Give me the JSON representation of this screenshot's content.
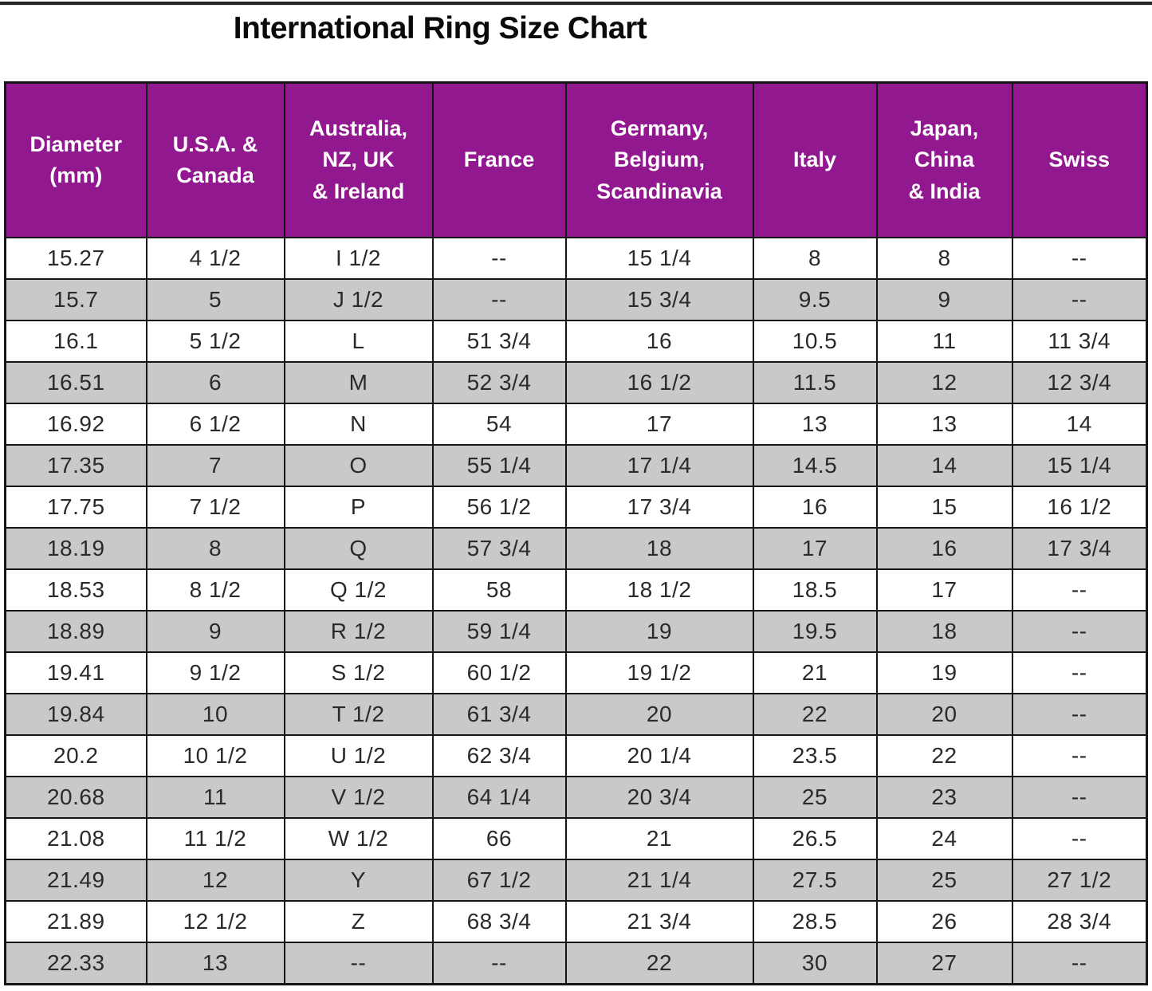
{
  "page": {
    "title": "International Ring Size Chart"
  },
  "colors": {
    "header_bg": "#91188F",
    "header_text": "#FFFFFF",
    "row_alt_bg": "#C9C9C9",
    "row_bg": "#FFFFFF",
    "border": "#161616",
    "cell_text": "#2A2A2A"
  },
  "table": {
    "header_display": [
      "Diameter\n(mm)",
      "U.S.A. &\nCanada",
      "Australia,\nNZ, UK\n& Ireland",
      "France",
      "Germany,\nBelgium,\nScandinavia",
      "Italy",
      "Japan,\nChina\n& India",
      "Swiss"
    ]
  },
  "chart_data": {
    "type": "table",
    "title": "International Ring Size Chart",
    "columns": [
      "Diameter (mm)",
      "U.S.A. & Canada",
      "Australia, NZ, UK & Ireland",
      "France",
      "Germany, Belgium, Scandinavia",
      "Italy",
      "Japan, China & India",
      "Swiss"
    ],
    "rows": [
      [
        "15.27",
        "4 1/2",
        "I 1/2",
        "--",
        "15 1/4",
        "8",
        "8",
        "--"
      ],
      [
        "15.7",
        "5",
        "J 1/2",
        "--",
        "15 3/4",
        "9.5",
        "9",
        "--"
      ],
      [
        "16.1",
        "5 1/2",
        "L",
        "51 3/4",
        "16",
        "10.5",
        "11",
        "11 3/4"
      ],
      [
        "16.51",
        "6",
        "M",
        "52 3/4",
        "16 1/2",
        "11.5",
        "12",
        "12 3/4"
      ],
      [
        "16.92",
        "6 1/2",
        "N",
        "54",
        "17",
        "13",
        "13",
        "14"
      ],
      [
        "17.35",
        "7",
        "O",
        "55 1/4",
        "17 1/4",
        "14.5",
        "14",
        "15 1/4"
      ],
      [
        "17.75",
        "7 1/2",
        "P",
        "56 1/2",
        "17 3/4",
        "16",
        "15",
        "16 1/2"
      ],
      [
        "18.19",
        "8",
        "Q",
        "57 3/4",
        "18",
        "17",
        "16",
        "17 3/4"
      ],
      [
        "18.53",
        "8 1/2",
        "Q 1/2",
        "58",
        "18 1/2",
        "18.5",
        "17",
        "--"
      ],
      [
        "18.89",
        "9",
        "R 1/2",
        "59 1/4",
        "19",
        "19.5",
        "18",
        "--"
      ],
      [
        "19.41",
        "9 1/2",
        "S 1/2",
        "60 1/2",
        "19 1/2",
        "21",
        "19",
        "--"
      ],
      [
        "19.84",
        "10",
        "T 1/2",
        "61 3/4",
        "20",
        "22",
        "20",
        "--"
      ],
      [
        "20.2",
        "10 1/2",
        "U 1/2",
        "62 3/4",
        "20 1/4",
        "23.5",
        "22",
        "--"
      ],
      [
        "20.68",
        "11",
        "V 1/2",
        "64 1/4",
        "20 3/4",
        "25",
        "23",
        "--"
      ],
      [
        "21.08",
        "11 1/2",
        "W 1/2",
        "66",
        "21",
        "26.5",
        "24",
        "--"
      ],
      [
        "21.49",
        "12",
        "Y",
        "67 1/2",
        "21 1/4",
        "27.5",
        "25",
        "27 1/2"
      ],
      [
        "21.89",
        "12 1/2",
        "Z",
        "68 3/4",
        "21 3/4",
        "28.5",
        "26",
        "28 3/4"
      ],
      [
        "22.33",
        "13",
        "--",
        "--",
        "22",
        "30",
        "27",
        "--"
      ]
    ]
  }
}
